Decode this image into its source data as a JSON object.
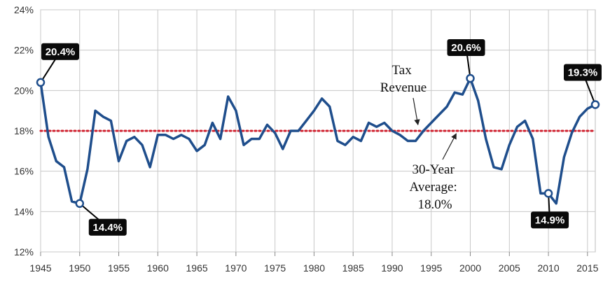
{
  "chart_data": {
    "type": "line",
    "title": "",
    "xlabel": "",
    "ylabel": "",
    "xlim": [
      1945,
      2016
    ],
    "ylim": [
      12,
      24
    ],
    "grid": true,
    "x_ticks": [
      1945,
      1950,
      1955,
      1960,
      1965,
      1970,
      1975,
      1980,
      1985,
      1990,
      1995,
      2000,
      2005,
      2010,
      2015
    ],
    "x_tick_labels": [
      "1945",
      "1950",
      "1955",
      "1960",
      "1965",
      "1970",
      "1975",
      "1980",
      "1985",
      "1990",
      "1995",
      "2000",
      "2005",
      "2010",
      "2015"
    ],
    "y_ticks": [
      12,
      14,
      16,
      18,
      20,
      22,
      24
    ],
    "y_tick_labels": [
      "12%",
      "14%",
      "16%",
      "18%",
      "20%",
      "22%",
      "24%"
    ],
    "line_color": "#1f4e8c",
    "average_color": "#d0202e",
    "series": [
      {
        "name": "Tax Revenue",
        "x": [
          1945,
          1946,
          1947,
          1948,
          1949,
          1950,
          1951,
          1952,
          1953,
          1954,
          1955,
          1956,
          1957,
          1958,
          1959,
          1960,
          1961,
          1962,
          1963,
          1964,
          1965,
          1966,
          1967,
          1968,
          1969,
          1970,
          1971,
          1972,
          1973,
          1974,
          1975,
          1976,
          1977,
          1978,
          1979,
          1980,
          1981,
          1982,
          1983,
          1984,
          1985,
          1986,
          1987,
          1988,
          1989,
          1990,
          1991,
          1992,
          1993,
          1994,
          1995,
          1996,
          1997,
          1998,
          1999,
          2000,
          2001,
          2002,
          2003,
          2004,
          2005,
          2006,
          2007,
          2008,
          2009,
          2010,
          2011,
          2012,
          2013,
          2014,
          2015,
          2016
        ],
        "values": [
          20.4,
          17.7,
          16.5,
          16.2,
          14.5,
          14.4,
          16.1,
          19.0,
          18.7,
          18.5,
          16.5,
          17.5,
          17.7,
          17.3,
          16.2,
          17.8,
          17.8,
          17.6,
          17.8,
          17.6,
          17.0,
          17.3,
          18.4,
          17.6,
          19.7,
          19.0,
          17.3,
          17.6,
          17.6,
          18.3,
          17.9,
          17.1,
          18.0,
          18.0,
          18.5,
          19.0,
          19.6,
          19.2,
          17.5,
          17.3,
          17.7,
          17.5,
          18.4,
          18.2,
          18.4,
          18.0,
          17.8,
          17.5,
          17.5,
          18.0,
          18.4,
          18.8,
          19.2,
          19.9,
          19.8,
          20.6,
          19.5,
          17.6,
          16.2,
          16.1,
          17.3,
          18.2,
          18.5,
          17.6,
          14.9,
          14.9,
          14.4,
          16.7,
          17.9,
          18.7,
          19.1,
          19.3
        ]
      }
    ],
    "reference_line": {
      "label": "30-Year Average: 18.0%",
      "value": 18.0
    },
    "annotations": {
      "series_label": [
        "Tax",
        "Revenue"
      ],
      "average_label": [
        "30-Year",
        "Average:",
        "18.0%"
      ]
    },
    "callouts": [
      {
        "x": 1945,
        "y": 20.4,
        "label": "20.4%"
      },
      {
        "x": 1950,
        "y": 14.4,
        "label": "14.4%"
      },
      {
        "x": 2000,
        "y": 20.6,
        "label": "20.6%"
      },
      {
        "x": 2010,
        "y": 14.9,
        "label": "14.9%"
      },
      {
        "x": 2016,
        "y": 19.3,
        "label": "19.3%"
      }
    ]
  }
}
